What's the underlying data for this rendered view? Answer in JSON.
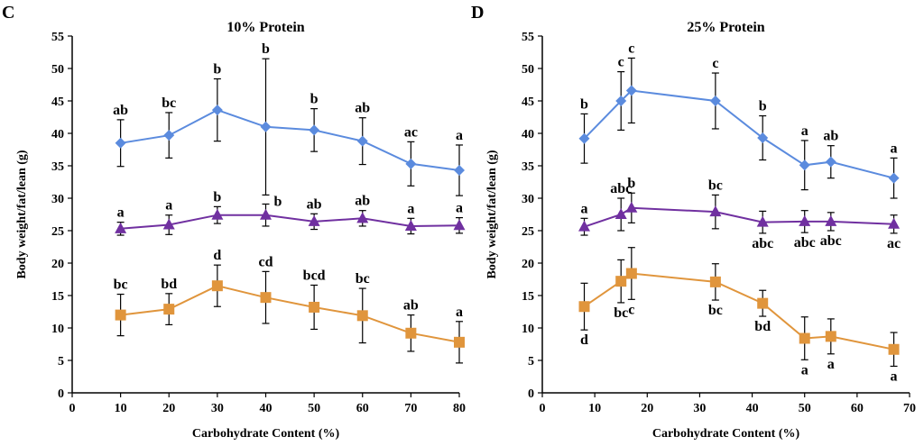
{
  "chart_data": [
    {
      "panel": "C",
      "type": "line",
      "title": "10% Protein",
      "xlabel": "Carbohydrate  Content (%)",
      "ylabel": "Body weight/fat/lean (g)",
      "xlim": [
        0,
        80
      ],
      "ylim": [
        0,
        55
      ],
      "xticks": [
        0,
        10,
        20,
        30,
        40,
        50,
        60,
        70,
        80
      ],
      "yticks": [
        0,
        5,
        10,
        15,
        20,
        25,
        30,
        35,
        40,
        45,
        50,
        55
      ],
      "grid": false,
      "series": [
        {
          "color": "#5B8BDE",
          "marker": "diamond",
          "x": [
            10,
            20,
            30,
            40,
            50,
            60,
            70,
            80
          ],
          "y": [
            38.5,
            39.7,
            43.6,
            41.0,
            40.5,
            38.8,
            35.3,
            34.3
          ],
          "err": [
            3.6,
            3.5,
            4.8,
            10.5,
            3.3,
            3.6,
            3.4,
            3.9
          ],
          "labels": [
            "ab",
            "bc",
            "b",
            "b",
            "b",
            "ab",
            "ac",
            "a"
          ],
          "label_pos": [
            "above",
            "above",
            "above",
            "above",
            "above",
            "above",
            "above",
            "above"
          ]
        },
        {
          "color": "#7030A0",
          "marker": "triangle",
          "x": [
            10,
            20,
            30,
            40,
            50,
            60,
            70,
            80
          ],
          "y": [
            25.3,
            25.9,
            27.4,
            27.4,
            26.4,
            26.9,
            25.7,
            25.8
          ],
          "err": [
            1.0,
            1.5,
            1.3,
            1.7,
            1.2,
            1.2,
            1.2,
            1.2
          ],
          "labels": [
            "a",
            "a",
            "b",
            "b",
            "ab",
            "ab",
            "a",
            "a"
          ],
          "label_pos": [
            "above",
            "above",
            "above",
            "right",
            "above",
            "above",
            "above",
            "above"
          ]
        },
        {
          "color": "#E0953C",
          "marker": "square",
          "x": [
            10,
            20,
            30,
            40,
            50,
            60,
            70,
            80
          ],
          "y": [
            12.0,
            12.9,
            16.5,
            14.7,
            13.2,
            11.9,
            9.2,
            7.8
          ],
          "err": [
            3.2,
            2.4,
            3.2,
            4.0,
            3.4,
            4.2,
            2.8,
            3.2
          ],
          "labels": [
            "bc",
            "bd",
            "d",
            "cd",
            "bcd",
            "bc",
            "ab",
            "a"
          ],
          "label_pos": [
            "above",
            "above",
            "above",
            "above",
            "above",
            "above",
            "above",
            "above"
          ]
        }
      ]
    },
    {
      "panel": "D",
      "type": "line",
      "title": "25% Protein",
      "xlabel": "Carbohydrate  Content (%)",
      "ylabel": "Body weight/fat/lean (g)",
      "xlim": [
        0,
        70
      ],
      "ylim": [
        0,
        55
      ],
      "xticks": [
        0,
        10,
        20,
        30,
        40,
        50,
        60,
        70
      ],
      "yticks": [
        0,
        5,
        10,
        15,
        20,
        25,
        30,
        35,
        40,
        45,
        50,
        55
      ],
      "grid": false,
      "series": [
        {
          "color": "#5B8BDE",
          "marker": "diamond",
          "x": [
            8,
            15,
            17,
            33,
            42,
            50,
            55,
            67
          ],
          "y": [
            39.2,
            45.0,
            46.6,
            45.0,
            39.3,
            35.1,
            35.6,
            33.1
          ],
          "err": [
            3.8,
            4.5,
            5.0,
            4.3,
            3.4,
            3.8,
            2.5,
            3.1
          ],
          "labels": [
            "b",
            "c",
            "c",
            "c",
            "b",
            "a",
            "ab",
            "a"
          ],
          "label_pos": [
            "above",
            "above",
            "above",
            "above",
            "above",
            "above",
            "above",
            "above"
          ]
        },
        {
          "color": "#7030A0",
          "marker": "triangle",
          "x": [
            8,
            15,
            17,
            33,
            42,
            50,
            55,
            67
          ],
          "y": [
            25.6,
            27.5,
            28.5,
            27.9,
            26.3,
            26.4,
            26.4,
            26.0
          ],
          "err": [
            1.3,
            2.5,
            2.3,
            2.6,
            1.7,
            1.7,
            1.4,
            1.4
          ],
          "labels": [
            "a",
            "abc",
            "b",
            "bc",
            "abc",
            "abc",
            "abc",
            "ac"
          ],
          "label_pos": [
            "above",
            "above",
            "above",
            "above",
            "below",
            "below",
            "below",
            "below"
          ]
        },
        {
          "color": "#E0953C",
          "marker": "square",
          "x": [
            8,
            15,
            17,
            33,
            42,
            50,
            55,
            67
          ],
          "y": [
            13.3,
            17.2,
            18.4,
            17.1,
            13.8,
            8.4,
            8.7,
            6.7
          ],
          "err": [
            3.6,
            3.3,
            4.0,
            2.8,
            2.0,
            3.3,
            2.7,
            2.6
          ],
          "labels": [
            "d",
            "bc",
            "c",
            "bc",
            "bd",
            "a",
            "a",
            "a"
          ],
          "label_pos": [
            "below",
            "below",
            "below",
            "below",
            "below",
            "below",
            "below",
            "below"
          ]
        }
      ]
    }
  ]
}
